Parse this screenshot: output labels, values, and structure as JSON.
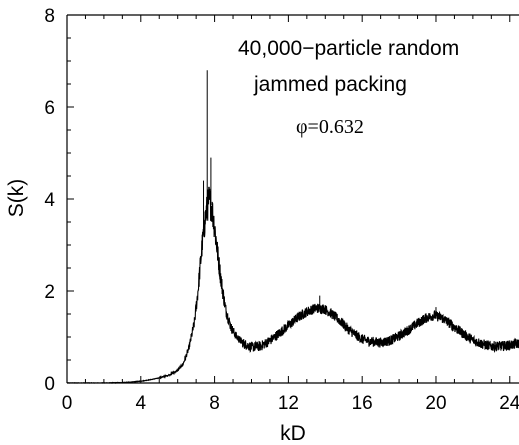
{
  "chart_data": {
    "type": "line",
    "title": "",
    "xlabel": "kD",
    "ylabel": "S(k)",
    "xlim": [
      0,
      24.5
    ],
    "ylim": [
      0,
      8
    ],
    "xticks": [
      0,
      4,
      8,
      12,
      16,
      20,
      24
    ],
    "yticks": [
      0,
      2,
      4,
      6,
      8
    ],
    "grid": false,
    "annotations": [
      "40,000−particle random",
      "jammed packing",
      "φ=0.632"
    ],
    "series": [
      {
        "x": [
          0,
          2,
          3,
          3.5,
          4,
          4.5,
          5,
          5.5,
          6,
          6.3,
          6.6,
          6.9,
          7.1,
          7.3,
          7.5,
          7.7,
          7.85,
          8.0,
          8.2,
          8.4,
          8.6,
          8.9,
          9.2,
          9.6,
          10.0,
          10.5,
          11.0,
          11.5,
          12.0,
          12.5,
          13.0,
          13.5,
          13.9,
          14.3,
          14.8,
          15.3,
          16.0,
          16.5,
          17.0,
          17.5,
          18.0,
          18.5,
          19.0,
          19.5,
          19.9,
          20.3,
          20.8,
          21.3,
          22.0,
          22.5,
          23.0,
          23.5,
          24.0,
          24.5
        ],
        "values": [
          0.0,
          0.0,
          0.01,
          0.02,
          0.04,
          0.07,
          0.11,
          0.17,
          0.27,
          0.42,
          0.75,
          1.3,
          2.0,
          2.9,
          3.6,
          4.0,
          3.8,
          3.4,
          2.7,
          2.1,
          1.6,
          1.2,
          1.0,
          0.85,
          0.78,
          0.8,
          0.92,
          1.08,
          1.25,
          1.42,
          1.55,
          1.63,
          1.62,
          1.52,
          1.35,
          1.15,
          0.95,
          0.9,
          0.88,
          0.92,
          1.02,
          1.15,
          1.3,
          1.42,
          1.47,
          1.42,
          1.28,
          1.12,
          0.93,
          0.85,
          0.8,
          0.8,
          0.82,
          0.86
        ],
        "spikes": [
          {
            "x": 7.6,
            "value": 6.8
          },
          {
            "x": 7.8,
            "value": 4.9
          },
          {
            "x": 7.4,
            "value": 4.4
          },
          {
            "x": 13.7,
            "value": 1.9
          },
          {
            "x": 20.0,
            "value": 1.65
          }
        ]
      }
    ]
  }
}
